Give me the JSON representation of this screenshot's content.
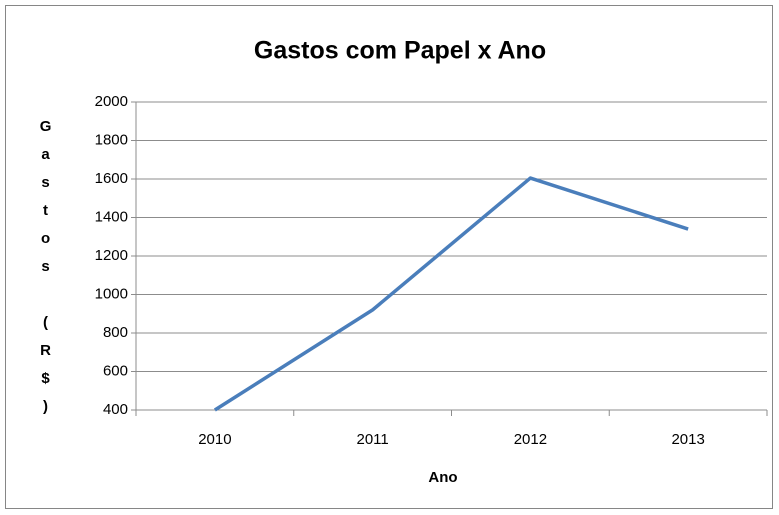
{
  "chart_data": {
    "type": "line",
    "title": "Gastos com Papel x Ano",
    "x_label": "Ano",
    "y_label": "Gastos (R$)",
    "categories": [
      "2010",
      "2011",
      "2012",
      "2013"
    ],
    "series": [
      {
        "name": "Gastos",
        "color": "#4a7ebb",
        "values": [
          400,
          920,
          1605,
          1340
        ]
      }
    ],
    "ylim": [
      400,
      2000
    ],
    "yticks": [
      400,
      600,
      800,
      1000,
      1200,
      1400,
      1600,
      1800,
      2000
    ],
    "grid": true
  }
}
